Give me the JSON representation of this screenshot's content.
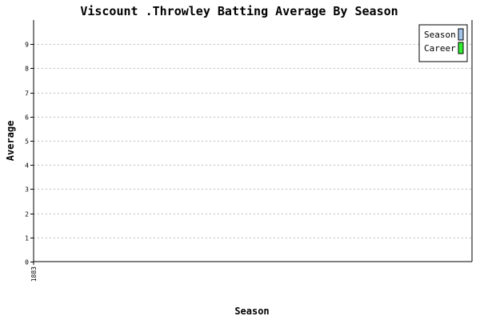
{
  "chart_data": {
    "type": "bar",
    "title": "Viscount .Throwley Batting Average By Season",
    "xlabel": "Season",
    "ylabel": "Average",
    "categories": [
      "1883"
    ],
    "series": [
      {
        "name": "Season",
        "values": [
          0
        ],
        "color": "#a3c5ea"
      },
      {
        "name": "Career",
        "values": [
          0
        ],
        "color": "#33ee33"
      }
    ],
    "ylim": [
      0,
      10
    ],
    "yticks": [
      0,
      1,
      2,
      3,
      4,
      5,
      6,
      7,
      8,
      9
    ],
    "grid": true,
    "legend_position": "top-right"
  }
}
